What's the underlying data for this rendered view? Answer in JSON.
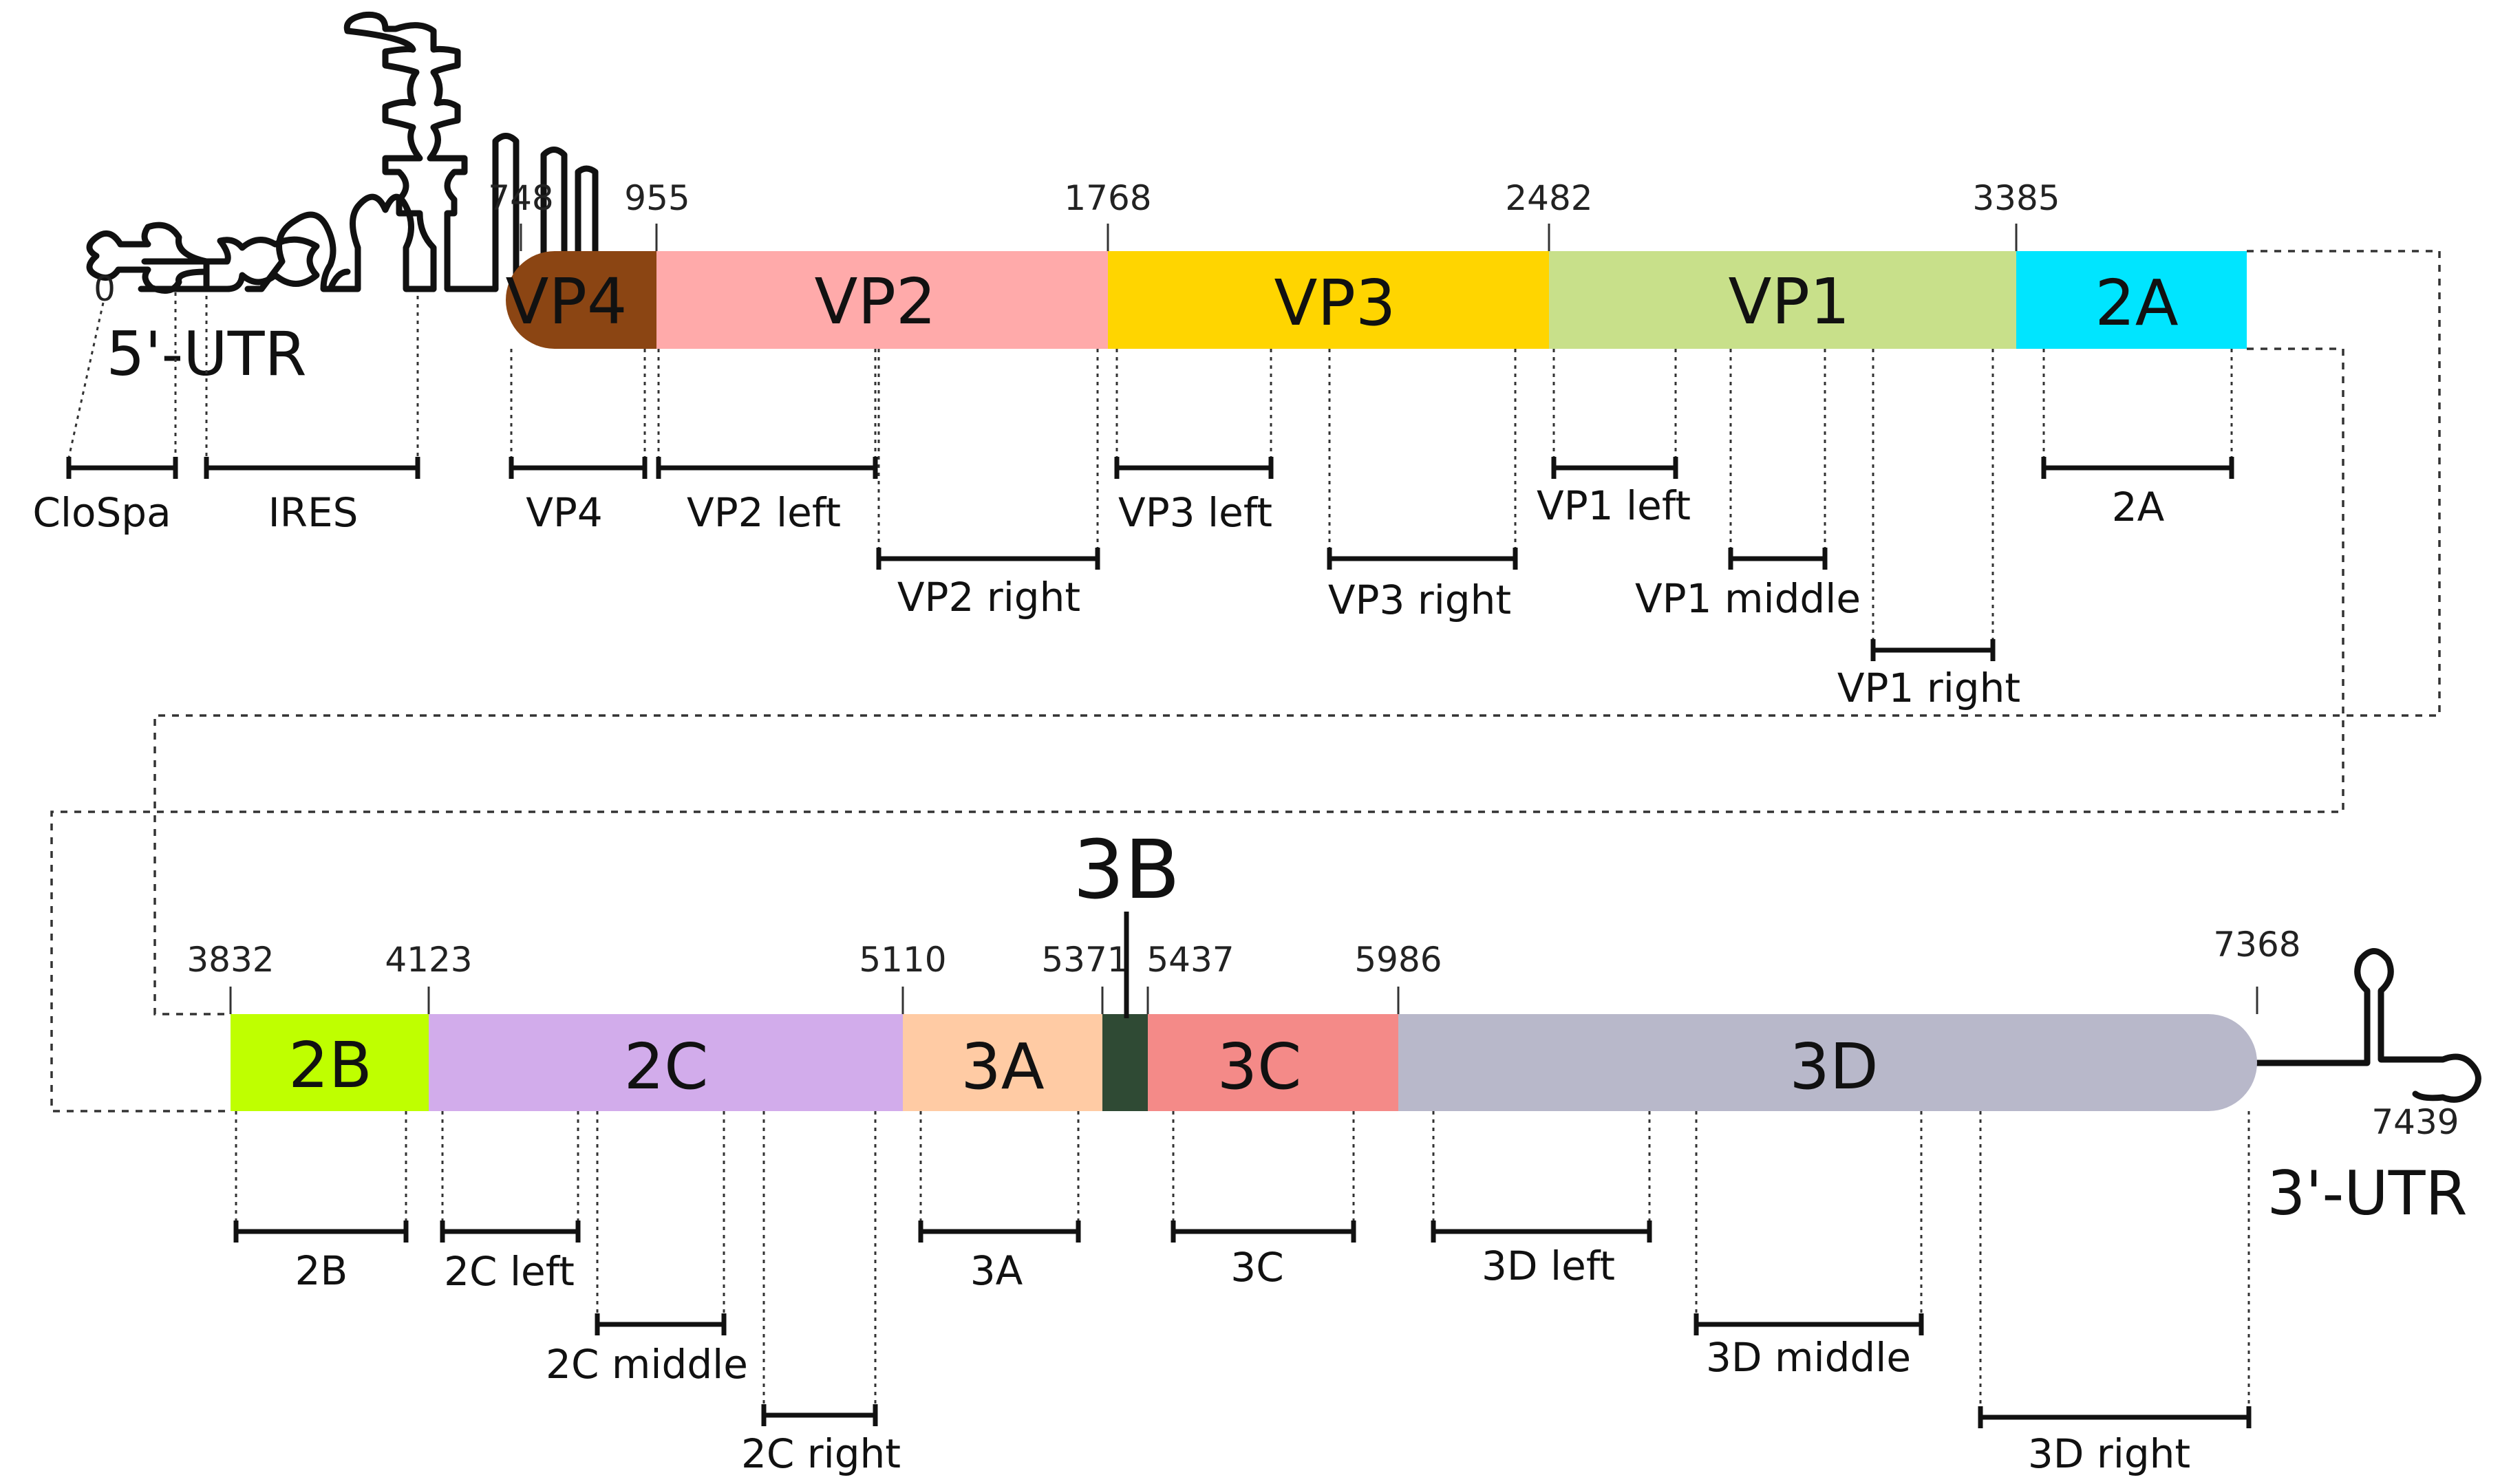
{
  "utr5": {
    "label": "5'-UTR",
    "start_position": "0"
  },
  "utr3": {
    "label": "3'-UTR",
    "end_position": "7439"
  },
  "rows": [
    {
      "segments": [
        {
          "name": "VP4",
          "label": "VP4",
          "color": "#8B4513",
          "start_label": "748"
        },
        {
          "name": "VP2",
          "label": "VP2",
          "color": "#FFAAAA",
          "start_label": "955"
        },
        {
          "name": "VP3",
          "label": "VP3",
          "color": "#FFD500",
          "start_label": "1768"
        },
        {
          "name": "VP1",
          "label": "VP1",
          "color": "#C8E08A",
          "start_label": "2482"
        },
        {
          "name": "2A",
          "label": "2A",
          "color": "#00E5FF",
          "start_label": "3385"
        }
      ]
    },
    {
      "segments": [
        {
          "name": "2B",
          "label": "2B",
          "color": "#BFFF00",
          "start_label": "3832"
        },
        {
          "name": "2C",
          "label": "2C",
          "color": "#D2ACEB",
          "start_label": "4123"
        },
        {
          "name": "3A",
          "label": "3A",
          "color": "#FFCBA4",
          "start_label": "5110"
        },
        {
          "name": "3B",
          "label": "",
          "color": "#2F4A34",
          "start_label": "5371"
        },
        {
          "name": "3C",
          "label": "3C",
          "color": "#F48A88",
          "start_label": "5437"
        },
        {
          "name": "3D",
          "label": "3D",
          "color": "#B8B8CA",
          "start_label": "5986"
        }
      ],
      "end_label": "7368"
    }
  ],
  "callout_3B": "3B",
  "amplicons": [
    {
      "name": "CloSpa",
      "label": "CloSpa"
    },
    {
      "name": "IRES",
      "label": "IRES"
    },
    {
      "name": "VP4",
      "label": "VP4"
    },
    {
      "name": "VP2 left",
      "label": "VP2 left"
    },
    {
      "name": "VP2 right",
      "label": "VP2 right"
    },
    {
      "name": "VP3 left",
      "label": "VP3 left"
    },
    {
      "name": "VP3 right",
      "label": "VP3 right"
    },
    {
      "name": "VP1 left",
      "label": "VP1 left"
    },
    {
      "name": "VP1 middle",
      "label": "VP1 middle"
    },
    {
      "name": "VP1 right",
      "label": "VP1 right"
    },
    {
      "name": "2A",
      "label": "2A"
    },
    {
      "name": "2B",
      "label": "2B"
    },
    {
      "name": "2C left",
      "label": "2C left"
    },
    {
      "name": "2C middle",
      "label": "2C middle"
    },
    {
      "name": "2C right",
      "label": "2C right"
    },
    {
      "name": "3A",
      "label": "3A"
    },
    {
      "name": "3C",
      "label": "3C"
    },
    {
      "name": "3D left",
      "label": "3D left"
    },
    {
      "name": "3D middle",
      "label": "3D middle"
    },
    {
      "name": "3D right",
      "label": "3D right"
    }
  ]
}
